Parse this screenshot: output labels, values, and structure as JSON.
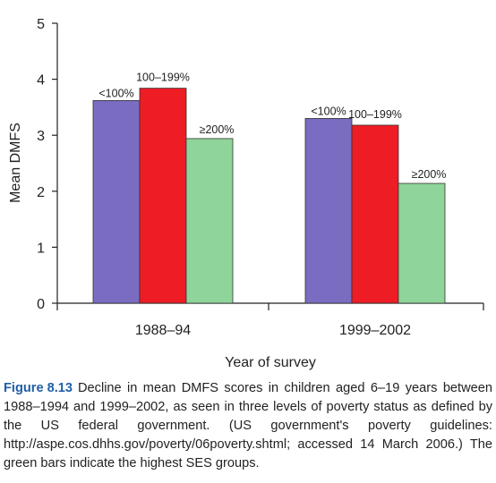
{
  "chart_data": {
    "type": "bar",
    "categories": [
      "1988–94",
      "1999–2002"
    ],
    "series": [
      {
        "name": "<100%",
        "values": [
          3.62,
          3.3
        ]
      },
      {
        "name": "100–199%",
        "values": [
          3.84,
          3.18
        ]
      },
      {
        "name": "≥200%",
        "values": [
          2.94,
          2.14
        ]
      }
    ],
    "bar_labels": [
      "<100%",
      "100–199%",
      "≥200%"
    ],
    "xlabel": "Year of survey",
    "ylabel": "Mean DMFS",
    "ylim": [
      0,
      5
    ],
    "yticks": [
      "0",
      "1",
      "2",
      "3",
      "4",
      "5"
    ],
    "grid": false,
    "colors": [
      "#7a6cc0",
      "#ee1c24",
      "#8fd49a"
    ]
  },
  "caption": {
    "label": "Figure",
    "number": "8.13",
    "text": "Decline in mean DMFS scores in children aged 6–19 years between 1988–1994 and 1999–2002, as seen in three levels of poverty status as defined by the US federal government. (US government's poverty guidelines: http://aspe.cos.dhhs.gov/poverty/06poverty.shtml; accessed 14 March 2006.) The green bars indicate the highest SES groups."
  }
}
